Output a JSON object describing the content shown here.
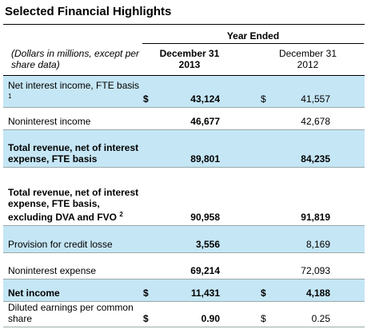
{
  "header": {
    "title": "Selected Financial Highlights",
    "period": "Year Ended",
    "stub": "(Dollars in millions, except per share data)",
    "columns": [
      {
        "line1": "December 31",
        "line2": "2013",
        "bold": true
      },
      {
        "line1": "December 31",
        "line2": "2012",
        "bold": false
      }
    ]
  },
  "table": {
    "rows": [
      {
        "label": "Net interest income, FTE basis",
        "note": "1",
        "bold": false,
        "shaded": true,
        "currency": [
          "$",
          "$"
        ],
        "values": [
          "43,124",
          "41,557"
        ]
      },
      {
        "label": "Noninterest income",
        "bold": false,
        "shaded": false,
        "values": [
          "46,677",
          "42,678"
        ]
      },
      {
        "label": "Total revenue, net of interest expense, FTE basis",
        "bold": true,
        "shaded": true,
        "values": [
          "89,801",
          "84,235"
        ]
      },
      {
        "label": "Total revenue, net of interest expense, FTE basis, excluding DVA and FVO",
        "note": "2",
        "bold": true,
        "shaded": false,
        "values": [
          "90,958",
          "91,819"
        ]
      },
      {
        "label": "Provision for credit losse",
        "bold": false,
        "shaded": true,
        "values": [
          "3,556",
          "8,169"
        ]
      },
      {
        "label": "Noninterest expense",
        "bold": false,
        "shaded": false,
        "values": [
          "69,214",
          "72,093"
        ]
      },
      {
        "label": "Net income",
        "bold": true,
        "shaded": true,
        "currency": [
          "$",
          "$"
        ],
        "values": [
          "11,431",
          "4,188"
        ]
      },
      {
        "label": "Diluted earnings per common share",
        "bold": false,
        "shaded": false,
        "currency": [
          "$",
          "$"
        ],
        "values": [
          "0.90",
          "0.25"
        ]
      }
    ]
  }
}
